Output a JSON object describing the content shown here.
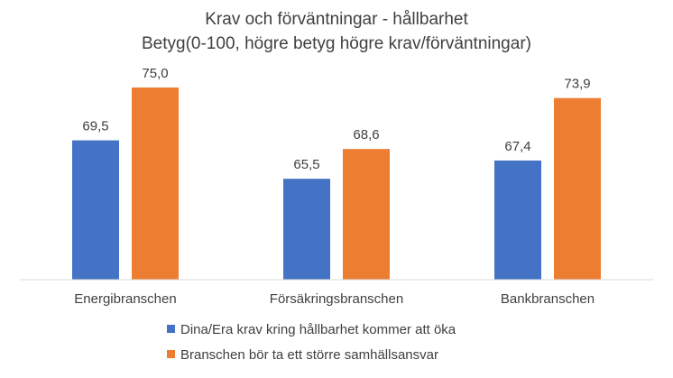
{
  "chart_data": {
    "type": "bar",
    "title": "Krav och förväntningar - hållbarhet",
    "subtitle": "Betyg(0-100, högre betyg högre krav/förväntningar)",
    "categories": [
      "Energibranschen",
      "Försäkringsbranschen",
      "Bankbranschen"
    ],
    "series": [
      {
        "name": "Dina/Era krav kring hållbarhet kommer att öka",
        "color": "#4472c4",
        "values": [
          69.5,
          65.5,
          67.4
        ],
        "labels": [
          "69,5",
          "65,5",
          "67,4"
        ]
      },
      {
        "name": "Branschen bör ta ett större samhällsansvar",
        "color": "#ed7d31",
        "values": [
          75.0,
          68.6,
          73.9
        ],
        "labels": [
          "75,0",
          "68,6",
          "73,9"
        ]
      }
    ],
    "ylim": [
      55,
      80
    ],
    "grid": false,
    "legend_position": "bottom"
  }
}
